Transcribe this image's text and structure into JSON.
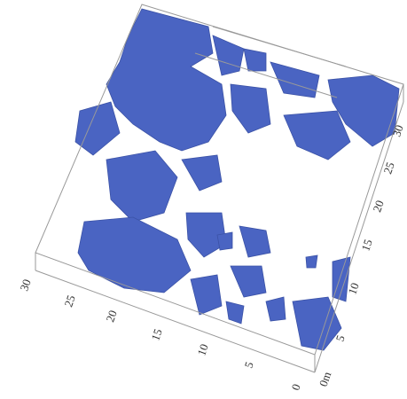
{
  "axes": {
    "front_left": {
      "labels": [
        "30",
        "25",
        "20",
        "15",
        "10",
        "5",
        "0"
      ]
    },
    "front_right": {
      "labels": [
        "0m",
        "5",
        "10",
        "15",
        "20",
        "25",
        "30"
      ]
    }
  }
}
